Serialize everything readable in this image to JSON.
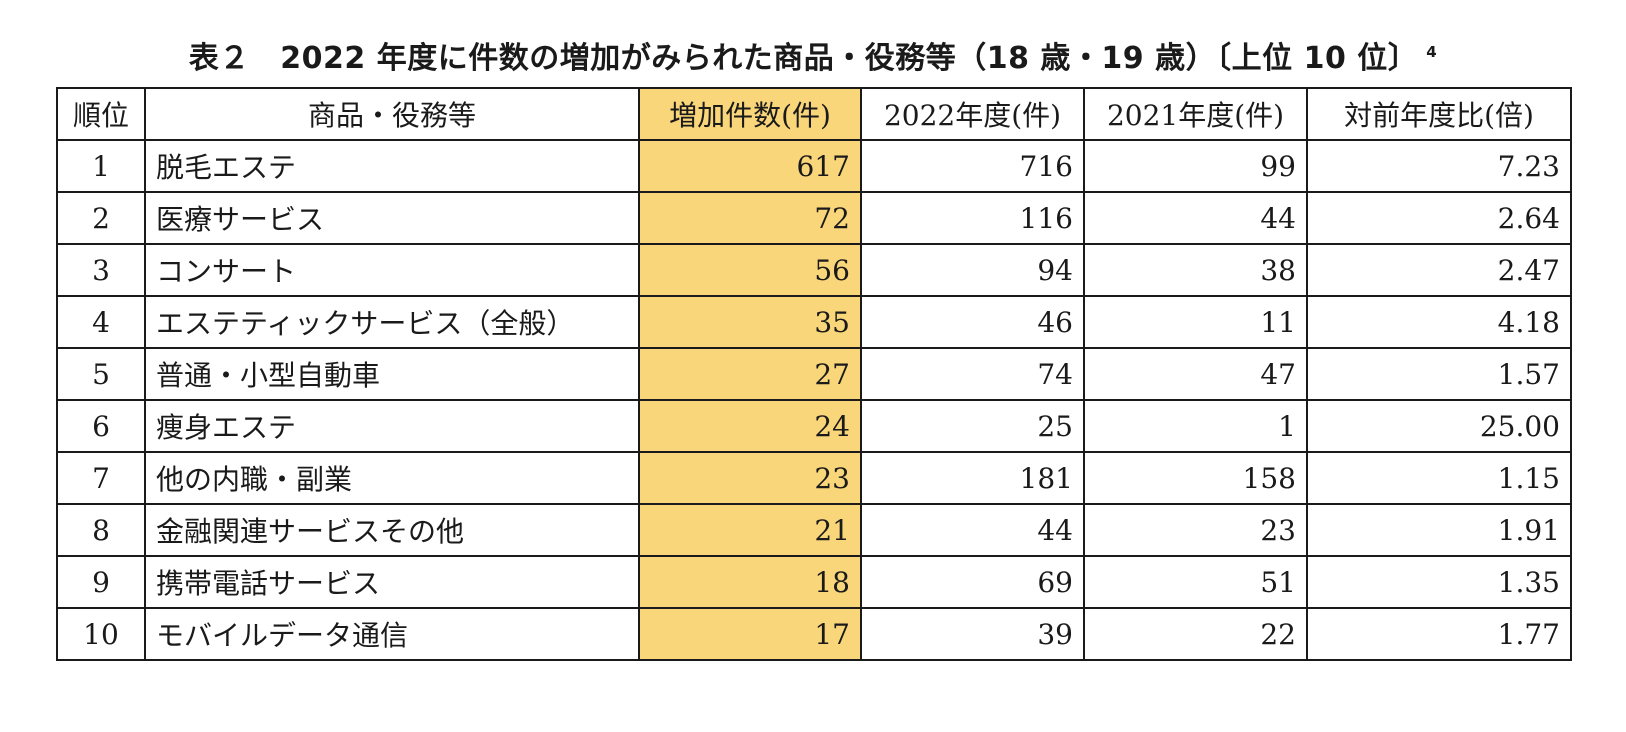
{
  "title": "表２　2022 年度に件数の増加がみられた商品・役務等（18 歳・19 歳）〔上位 10 位〕",
  "title_footnote": "4",
  "colors": {
    "highlight": "#fad67a",
    "border": "#1a1a1a"
  },
  "table": {
    "headers": [
      "順位",
      "商品・役務等",
      "増加件数(件)",
      "2022年度(件)",
      "2021年度(件)",
      "対前年度比(倍)"
    ],
    "rows": [
      {
        "rank": "1",
        "item": "脱毛エステ",
        "increase": "617",
        "fy2022": "716",
        "fy2021": "99",
        "ratio": "7.23"
      },
      {
        "rank": "2",
        "item": "医療サービス",
        "increase": "72",
        "fy2022": "116",
        "fy2021": "44",
        "ratio": "2.64"
      },
      {
        "rank": "3",
        "item": "コンサート",
        "increase": "56",
        "fy2022": "94",
        "fy2021": "38",
        "ratio": "2.47"
      },
      {
        "rank": "4",
        "item": "エステティックサービス（全般）",
        "increase": "35",
        "fy2022": "46",
        "fy2021": "11",
        "ratio": "4.18"
      },
      {
        "rank": "5",
        "item": "普通・小型自動車",
        "increase": "27",
        "fy2022": "74",
        "fy2021": "47",
        "ratio": "1.57"
      },
      {
        "rank": "6",
        "item": "痩身エステ",
        "increase": "24",
        "fy2022": "25",
        "fy2021": "1",
        "ratio": "25.00"
      },
      {
        "rank": "7",
        "item": "他の内職・副業",
        "increase": "23",
        "fy2022": "181",
        "fy2021": "158",
        "ratio": "1.15"
      },
      {
        "rank": "8",
        "item": "金融関連サービスその他",
        "increase": "21",
        "fy2022": "44",
        "fy2021": "23",
        "ratio": "1.91"
      },
      {
        "rank": "9",
        "item": "携帯電話サービス",
        "increase": "18",
        "fy2022": "69",
        "fy2021": "51",
        "ratio": "1.35"
      },
      {
        "rank": "10",
        "item": "モバイルデータ通信",
        "increase": "17",
        "fy2022": "39",
        "fy2021": "22",
        "ratio": "1.77"
      }
    ]
  }
}
